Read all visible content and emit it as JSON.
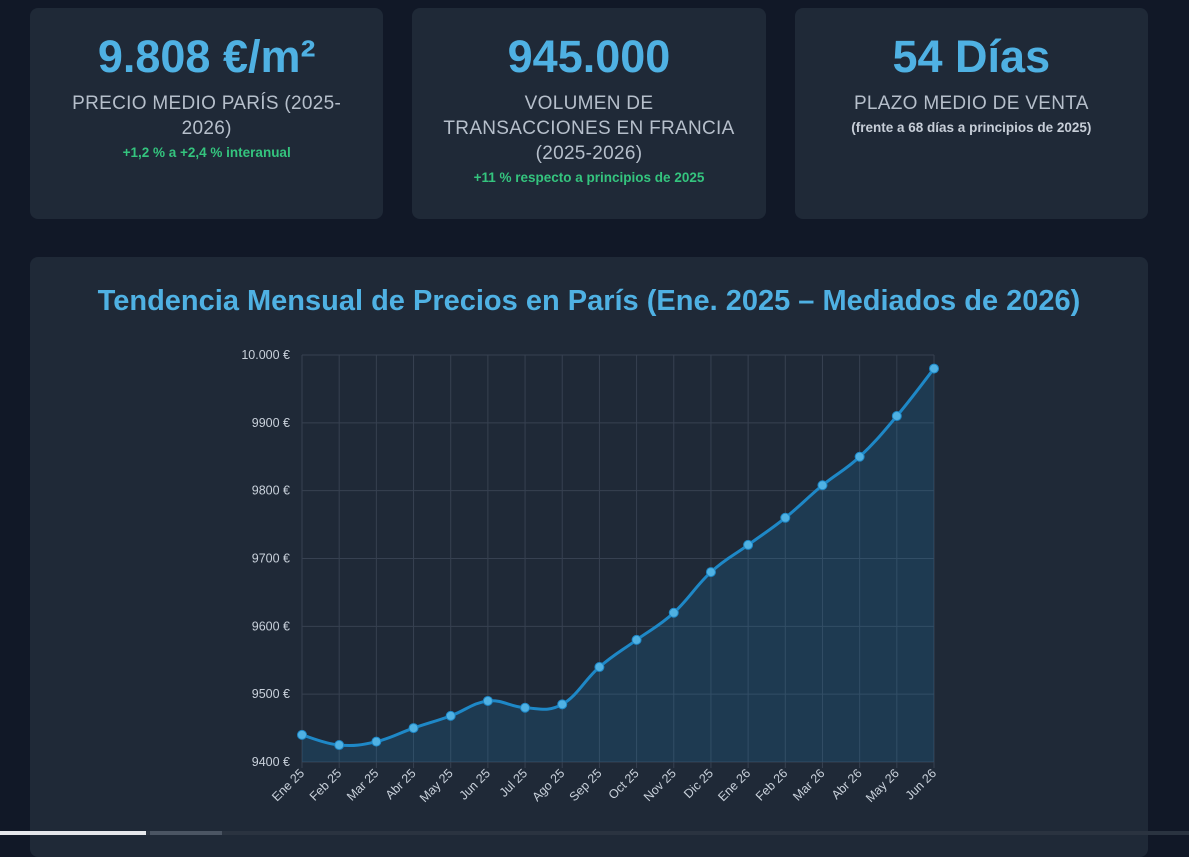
{
  "stats": [
    {
      "value": "9.808 €/m²",
      "label": "PRECIO MEDIO PARÍS (2025-2026)",
      "note": "+1,2 % a +2,4 % interanual"
    },
    {
      "value": "945.000",
      "label": "VOLUMEN DE TRANSACCIONES EN FRANCIA (2025-2026)",
      "note": "+11 % respecto a principios de 2025"
    },
    {
      "value": "54 Días",
      "label": "PLAZO MEDIO DE VENTA",
      "note": "(frente a 68 días a principios de 2025)"
    }
  ],
  "colors": {
    "accent": "#4fb1e3",
    "positive": "#34c47e",
    "line": "#1e88c7",
    "point": "#4fb1e3"
  },
  "chart_data": {
    "type": "line",
    "title": "Tendencia Mensual de Precios en París (Ene. 2025 – Mediados de 2026)",
    "xlabel": "",
    "ylabel": "",
    "categories": [
      "Ene 25",
      "Feb 25",
      "Mar 25",
      "Abr 25",
      "May 25",
      "Jun 25",
      "Jul 25",
      "Ago 25",
      "Sep 25",
      "Oct 25",
      "Nov 25",
      "Dic 25",
      "Ene 26",
      "Feb 26",
      "Mar 26",
      "Abr 26",
      "May 26",
      "Jun 26"
    ],
    "series": [
      {
        "values": [
          9440,
          9425,
          9430,
          9450,
          9468,
          9490,
          9480,
          9485,
          9540,
          9580,
          9620,
          9680,
          9720,
          9760,
          9808,
          9850,
          9910,
          9980
        ]
      }
    ],
    "ylim": [
      9400,
      10000
    ],
    "yticks": [
      "10.000 €",
      "9900 €",
      "9800 €",
      "9700 €",
      "9600 €",
      "9500 €",
      "9400 €"
    ],
    "ytick_values": [
      10000,
      9900,
      9800,
      9700,
      9600,
      9500,
      9400
    ],
    "grid": true,
    "area_fill": true
  }
}
